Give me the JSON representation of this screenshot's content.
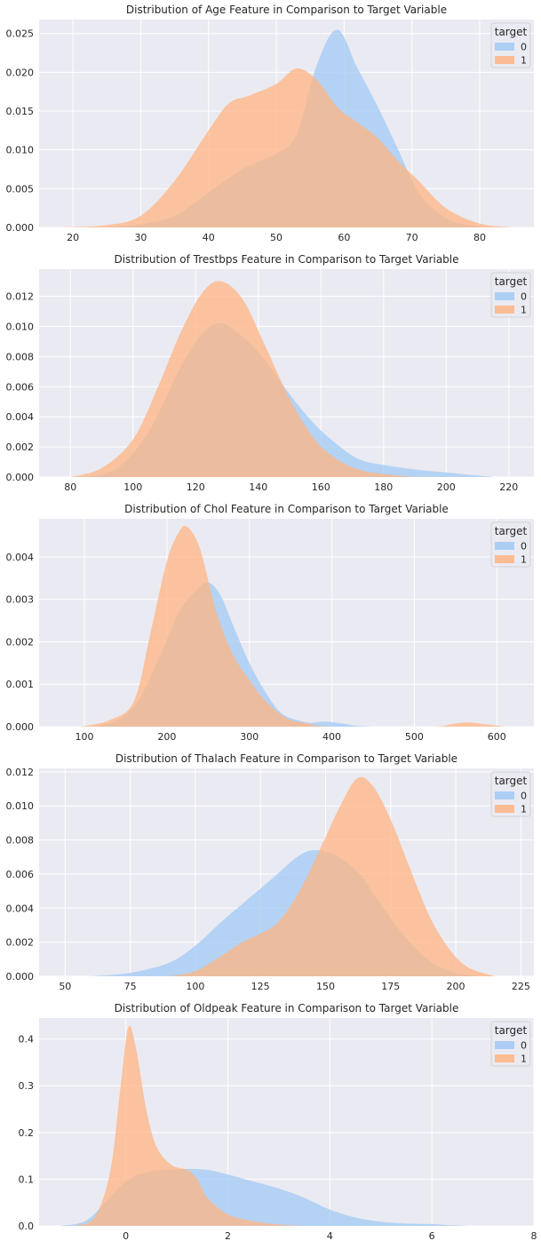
{
  "colors": {
    "class0": "#a1c9f4",
    "class1": "#ffb482",
    "plot_bg": "#eaeaf2",
    "grid": "#ffffff"
  },
  "chart_data": [
    {
      "type": "area",
      "title": "Distribution of Age Feature in Comparison to Target Variable",
      "xlim": [
        15,
        88
      ],
      "ylim": [
        0,
        0.0268
      ],
      "xticks": [
        20,
        30,
        40,
        50,
        60,
        70,
        80
      ],
      "yticks": [
        0,
        0.005,
        0.01,
        0.015,
        0.02,
        0.025
      ],
      "ytick_labels": [
        "0.000",
        "0.005",
        "0.010",
        "0.015",
        "0.020",
        "0.025"
      ],
      "legend": {
        "title": "target",
        "entries": [
          "0",
          "1"
        ],
        "position": "top-right"
      },
      "series": [
        {
          "name": "0",
          "points": [
            [
              25,
              0
            ],
            [
              30,
              0.0004
            ],
            [
              35,
              0.0015
            ],
            [
              40,
              0.0045
            ],
            [
              45,
              0.0075
            ],
            [
              50,
              0.0095
            ],
            [
              53,
              0.012
            ],
            [
              56,
              0.021
            ],
            [
              59,
              0.0255
            ],
            [
              62,
              0.0205
            ],
            [
              65,
              0.0155
            ],
            [
              68,
              0.01
            ],
            [
              71,
              0.0045
            ],
            [
              75,
              0.0012
            ],
            [
              80,
              0.0001
            ],
            [
              85,
              0
            ]
          ]
        },
        {
          "name": "1",
          "points": [
            [
              18,
              0
            ],
            [
              25,
              0.0003
            ],
            [
              30,
              0.0015
            ],
            [
              35,
              0.006
            ],
            [
              40,
              0.0125
            ],
            [
              43,
              0.016
            ],
            [
              46,
              0.017
            ],
            [
              50,
              0.0185
            ],
            [
              53,
              0.0205
            ],
            [
              56,
              0.019
            ],
            [
              59,
              0.0155
            ],
            [
              62,
              0.0135
            ],
            [
              65,
              0.0115
            ],
            [
              68,
              0.0085
            ],
            [
              71,
              0.006
            ],
            [
              75,
              0.0025
            ],
            [
              80,
              0.0005
            ],
            [
              85,
              0
            ]
          ]
        }
      ]
    },
    {
      "type": "area",
      "title": "Distribution of Trestbps Feature in Comparison to Target Variable",
      "xlim": [
        70,
        228
      ],
      "ylim": [
        0,
        0.0138
      ],
      "xticks": [
        80,
        100,
        120,
        140,
        160,
        180,
        200,
        220
      ],
      "yticks": [
        0,
        0.002,
        0.004,
        0.006,
        0.008,
        0.01,
        0.012
      ],
      "ytick_labels": [
        "0.000",
        "0.002",
        "0.004",
        "0.006",
        "0.008",
        "0.010",
        "0.012"
      ],
      "legend": {
        "title": "target",
        "entries": [
          "0",
          "1"
        ],
        "position": "top-right"
      },
      "series": [
        {
          "name": "0",
          "points": [
            [
              85,
              0
            ],
            [
              95,
              0.0006
            ],
            [
              105,
              0.003
            ],
            [
              115,
              0.0072
            ],
            [
              122,
              0.0095
            ],
            [
              128,
              0.0102
            ],
            [
              135,
              0.0093
            ],
            [
              142,
              0.0078
            ],
            [
              150,
              0.0055
            ],
            [
              158,
              0.0035
            ],
            [
              165,
              0.0022
            ],
            [
              172,
              0.0012
            ],
            [
              180,
              0.0008
            ],
            [
              190,
              0.0005
            ],
            [
              200,
              0.0003
            ],
            [
              210,
              0.0001
            ],
            [
              215,
              0
            ]
          ]
        },
        {
          "name": "1",
          "points": [
            [
              80,
              0
            ],
            [
              90,
              0.0006
            ],
            [
              100,
              0.0025
            ],
            [
              108,
              0.006
            ],
            [
              115,
              0.0095
            ],
            [
              122,
              0.0122
            ],
            [
              128,
              0.013
            ],
            [
              135,
              0.0118
            ],
            [
              142,
              0.0088
            ],
            [
              150,
              0.0052
            ],
            [
              158,
              0.0025
            ],
            [
              165,
              0.0012
            ],
            [
              172,
              0.0005
            ],
            [
              180,
              0.0002
            ],
            [
              190,
              0
            ]
          ]
        }
      ]
    },
    {
      "type": "area",
      "title": "Distribution of Chol Feature in Comparison to Target Variable",
      "xlim": [
        45,
        645
      ],
      "ylim": [
        0,
        0.0049
      ],
      "xticks": [
        100,
        200,
        300,
        400,
        500,
        600
      ],
      "yticks": [
        0,
        0.001,
        0.002,
        0.003,
        0.004
      ],
      "ytick_labels": [
        "0.000",
        "0.001",
        "0.002",
        "0.003",
        "0.004"
      ],
      "legend": {
        "title": "target",
        "entries": [
          "0",
          "1"
        ],
        "position": "top-right"
      },
      "series": [
        {
          "name": "0",
          "points": [
            [
              110,
              0
            ],
            [
              140,
              0.00015
            ],
            [
              165,
              0.0006
            ],
            [
              190,
              0.0016
            ],
            [
              215,
              0.0027
            ],
            [
              235,
              0.0032
            ],
            [
              250,
              0.0034
            ],
            [
              265,
              0.0031
            ],
            [
              280,
              0.0024
            ],
            [
              300,
              0.0015
            ],
            [
              320,
              0.0008
            ],
            [
              340,
              0.0003
            ],
            [
              370,
              0.0001
            ],
            [
              390,
              0.00012
            ],
            [
              410,
              8e-05
            ],
            [
              430,
              2e-05
            ],
            [
              450,
              0
            ]
          ]
        },
        {
          "name": "1",
          "points": [
            [
              95,
              0
            ],
            [
              130,
              0.00015
            ],
            [
              160,
              0.0006
            ],
            [
              180,
              0.0022
            ],
            [
              200,
              0.0039
            ],
            [
              215,
              0.0046
            ],
            [
              225,
              0.0047
            ],
            [
              240,
              0.0042
            ],
            [
              260,
              0.0027
            ],
            [
              280,
              0.0017
            ],
            [
              300,
              0.0011
            ],
            [
              320,
              0.0006
            ],
            [
              345,
              0.0002
            ],
            [
              370,
              8e-05
            ],
            [
              400,
              0
            ],
            [
              520,
              0
            ],
            [
              545,
              6e-05
            ],
            [
              565,
              0.0001
            ],
            [
              585,
              6e-05
            ],
            [
              610,
              0
            ]
          ]
        }
      ]
    },
    {
      "type": "area",
      "title": "Distribution of Thalach Feature in Comparison to Target Variable",
      "xlim": [
        40,
        230
      ],
      "ylim": [
        0,
        0.0122
      ],
      "xticks": [
        50,
        75,
        100,
        125,
        150,
        175,
        200,
        225
      ],
      "yticks": [
        0,
        0.002,
        0.004,
        0.006,
        0.008,
        0.01,
        0.012
      ],
      "ytick_labels": [
        "0.000",
        "0.002",
        "0.004",
        "0.006",
        "0.008",
        "0.010",
        "0.012"
      ],
      "legend": {
        "title": "target",
        "entries": [
          "0",
          "1"
        ],
        "position": "top-right"
      },
      "series": [
        {
          "name": "0",
          "points": [
            [
              60,
              0
            ],
            [
              75,
              0.0002
            ],
            [
              90,
              0.0008
            ],
            [
              100,
              0.0018
            ],
            [
              110,
              0.0032
            ],
            [
              120,
              0.0045
            ],
            [
              130,
              0.0058
            ],
            [
              140,
              0.0071
            ],
            [
              147,
              0.0074
            ],
            [
              155,
              0.007
            ],
            [
              163,
              0.006
            ],
            [
              170,
              0.0045
            ],
            [
              180,
              0.0024
            ],
            [
              190,
              0.0009
            ],
            [
              200,
              0.0002
            ],
            [
              210,
              0
            ]
          ]
        },
        {
          "name": "1",
          "points": [
            [
              90,
              0
            ],
            [
              100,
              0.0003
            ],
            [
              110,
              0.0012
            ],
            [
              118,
              0.002
            ],
            [
              125,
              0.0025
            ],
            [
              132,
              0.0032
            ],
            [
              140,
              0.005
            ],
            [
              148,
              0.0075
            ],
            [
              155,
              0.0098
            ],
            [
              162,
              0.0116
            ],
            [
              168,
              0.0112
            ],
            [
              175,
              0.0092
            ],
            [
              182,
              0.0065
            ],
            [
              190,
              0.0035
            ],
            [
              198,
              0.0015
            ],
            [
              205,
              0.0005
            ],
            [
              215,
              0
            ]
          ]
        }
      ]
    },
    {
      "type": "area",
      "title": "Distribution of Oldpeak Feature in Comparison to Target Variable",
      "xlim": [
        -1.7,
        8.0
      ],
      "ylim": [
        0,
        0.445
      ],
      "xticks": [
        0,
        2,
        4,
        6,
        8
      ],
      "yticks": [
        0,
        0.1,
        0.2,
        0.3,
        0.4
      ],
      "ytick_labels": [
        "0.0",
        "0.1",
        "0.2",
        "0.3",
        "0.4"
      ],
      "legend": {
        "title": "target",
        "entries": [
          "0",
          "1"
        ],
        "position": "top-right"
      },
      "series": [
        {
          "name": "0",
          "points": [
            [
              -1.3,
              0
            ],
            [
              -0.8,
              0.01
            ],
            [
              -0.4,
              0.05
            ],
            [
              0,
              0.095
            ],
            [
              0.4,
              0.115
            ],
            [
              0.8,
              0.12
            ],
            [
              1.2,
              0.122
            ],
            [
              1.6,
              0.12
            ],
            [
              2.0,
              0.11
            ],
            [
              2.5,
              0.095
            ],
            [
              3.0,
              0.08
            ],
            [
              3.5,
              0.06
            ],
            [
              4.0,
              0.035
            ],
            [
              4.5,
              0.018
            ],
            [
              5.0,
              0.009
            ],
            [
              5.5,
              0.005
            ],
            [
              6.0,
              0.004
            ],
            [
              6.3,
              0.002
            ],
            [
              6.7,
              0
            ]
          ]
        },
        {
          "name": "1",
          "points": [
            [
              -1.0,
              0
            ],
            [
              -0.6,
              0.02
            ],
            [
              -0.3,
              0.12
            ],
            [
              -0.1,
              0.3
            ],
            [
              0.05,
              0.425
            ],
            [
              0.2,
              0.38
            ],
            [
              0.4,
              0.25
            ],
            [
              0.6,
              0.17
            ],
            [
              0.9,
              0.13
            ],
            [
              1.2,
              0.12
            ],
            [
              1.4,
              0.1
            ],
            [
              1.6,
              0.06
            ],
            [
              2.0,
              0.025
            ],
            [
              2.5,
              0.01
            ],
            [
              3.0,
              0.003
            ],
            [
              3.5,
              0
            ]
          ]
        }
      ]
    }
  ]
}
